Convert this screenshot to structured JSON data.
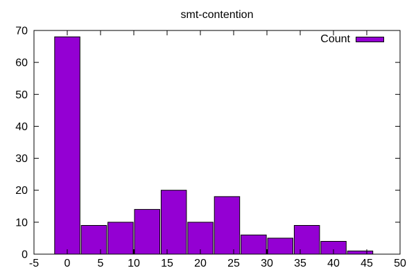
{
  "chart_data": {
    "type": "bar",
    "title": "smt-contention",
    "series": [
      {
        "name": "Count",
        "color": "#9400d3"
      }
    ],
    "bin_centers": [
      0,
      4,
      8,
      12,
      16,
      20,
      24,
      28,
      32,
      36,
      40,
      44
    ],
    "values": [
      68,
      9,
      10,
      14,
      20,
      10,
      18,
      6,
      5,
      9,
      4,
      1
    ],
    "bar_width": 3.8,
    "bar_color": "#9400d3",
    "bar_border_color": "#000000",
    "axis_color": "#000000",
    "background_color": "#ffffff",
    "xlabel": "",
    "ylabel": "",
    "xlim": [
      -5,
      50
    ],
    "ylim": [
      0,
      70
    ],
    "x_ticks": [
      -5,
      0,
      5,
      10,
      15,
      20,
      25,
      30,
      35,
      40,
      45,
      50
    ],
    "y_ticks": [
      0,
      10,
      20,
      30,
      40,
      50,
      60,
      70
    ],
    "grid": false,
    "legend_position": "top-right",
    "legend_label": "Count"
  }
}
